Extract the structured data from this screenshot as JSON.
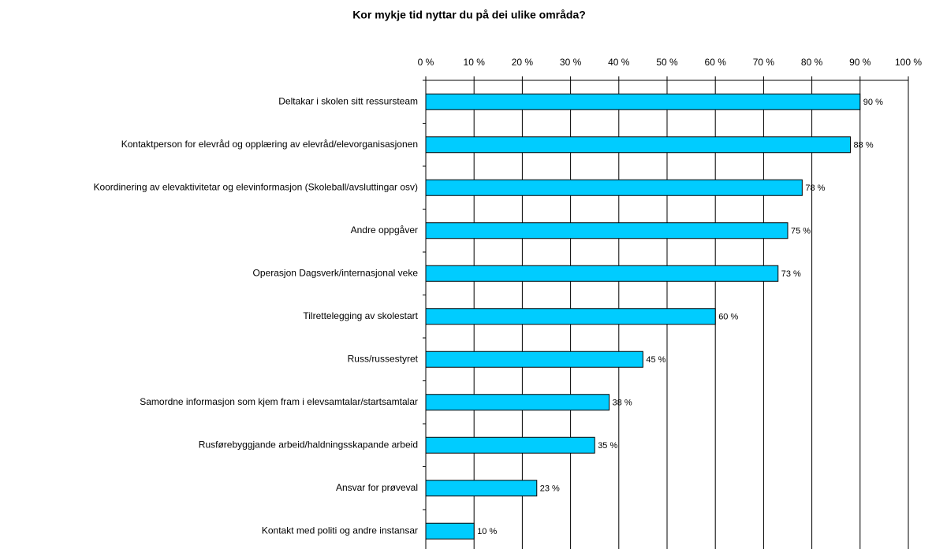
{
  "chart_data": {
    "type": "bar",
    "orientation": "horizontal",
    "title": "Kor mykje tid nyttar du på dei ulike områda?",
    "categories": [
      "Deltakar i skolen sitt ressursteam",
      "Kontaktperson for elevråd og opplæring av elevråd/elevorganisasjonen",
      "Koordinering av elevaktivitetar og elevinformasjon (Skoleball/avsluttingar osv)",
      "Andre oppgåver",
      "Operasjon Dagsverk/internasjonal veke",
      "Tilrettelegging av skolestart",
      "Russ/russestyret",
      "Samordne informasjon som kjem fram i elevsamtalar/startsamtalar",
      "Rusførebyggjande arbeid/haldningsskapande arbeid",
      "Ansvar for prøveval",
      "Kontakt med politi og andre instansar"
    ],
    "values": [
      90,
      88,
      78,
      75,
      73,
      60,
      45,
      38,
      35,
      23,
      10
    ],
    "value_labels": [
      "90 %",
      "88 %",
      "78 %",
      "75 %",
      "73 %",
      "60 %",
      "45 %",
      "38 %",
      "35 %",
      "23 %",
      "10 %"
    ],
    "color": "#00ccff",
    "xlim": [
      0,
      100
    ],
    "xticks": [
      {
        "value": 0,
        "label": "0 %"
      },
      {
        "value": 10,
        "label": "10 %"
      },
      {
        "value": 20,
        "label": "20 %"
      },
      {
        "value": 30,
        "label": "30 %"
      },
      {
        "value": 40,
        "label": "40 %"
      },
      {
        "value": 50,
        "label": "50 %"
      },
      {
        "value": 60,
        "label": "60 %"
      },
      {
        "value": 70,
        "label": "70 %"
      },
      {
        "value": 80,
        "label": "80 %"
      },
      {
        "value": 90,
        "label": "90 %"
      },
      {
        "value": 100,
        "label": "100 %"
      }
    ],
    "grid": true
  }
}
